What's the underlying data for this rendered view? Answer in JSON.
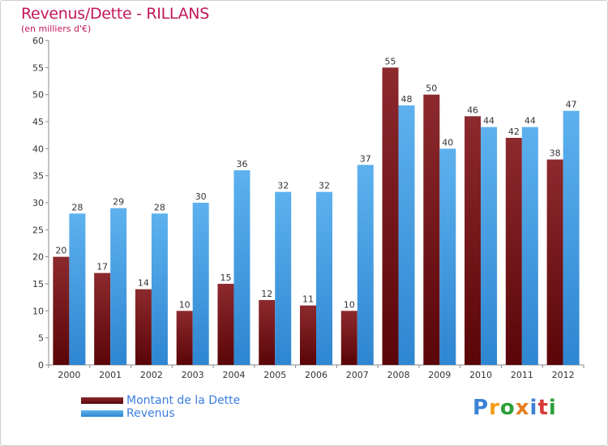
{
  "chart_data": {
    "type": "bar",
    "title": "Revenus/Dette - RILLANS",
    "subtitle": "(en milliers d'€)",
    "xlabel": "",
    "ylabel": "",
    "ylim": [
      0,
      60
    ],
    "yticks": [
      0,
      5,
      10,
      15,
      20,
      25,
      30,
      35,
      40,
      45,
      50,
      55,
      60
    ],
    "categories": [
      "2000",
      "2001",
      "2002",
      "2003",
      "2004",
      "2005",
      "2006",
      "2007",
      "2008",
      "2009",
      "2010",
      "2011",
      "2012"
    ],
    "series": [
      {
        "name": "Montant de la Dette",
        "color": "#7a0f12",
        "values": [
          20,
          17,
          14,
          10,
          15,
          12,
          11,
          10,
          55,
          50,
          46,
          42,
          38
        ]
      },
      {
        "name": "Revenus",
        "color": "#4ea3e6",
        "values": [
          28,
          29,
          28,
          30,
          36,
          32,
          32,
          37,
          48,
          40,
          44,
          44,
          47
        ]
      }
    ],
    "legend_position": "bottom-left",
    "grid": false
  },
  "logo": {
    "letters": [
      "P",
      "r",
      "o",
      "x",
      "i",
      "t",
      "i"
    ],
    "colors": [
      "#3b82d6",
      "#f39c12",
      "#2e9e3a",
      "#e67e22",
      "#3b82d6",
      "#d63a3a",
      "#2e9e3a"
    ]
  }
}
